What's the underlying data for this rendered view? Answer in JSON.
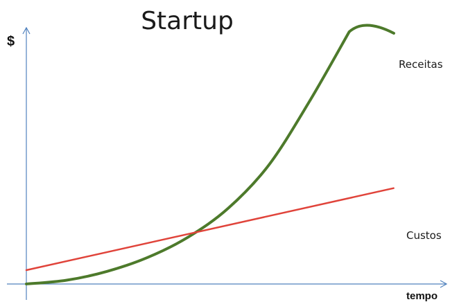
{
  "chart_data": {
    "type": "line",
    "title": "Startup",
    "xlabel": "tempo",
    "ylabel": "$",
    "xlim": [
      0,
      10
    ],
    "ylim": [
      0,
      10
    ],
    "grid": false,
    "x_ticks": false,
    "y_ticks": false,
    "series": [
      {
        "name": "Receitas",
        "color": "#4d7a2b",
        "x": [
          0,
          1,
          2,
          3,
          4,
          5,
          6,
          7,
          8,
          9.1
        ],
        "y": [
          0,
          0.15,
          0.5,
          1.05,
          1.85,
          3.0,
          4.7,
          7.2,
          10.0,
          10.0
        ],
        "shape": "exponential"
      },
      {
        "name": "Custos",
        "color": "#e0433a",
        "x": [
          0,
          9.1
        ],
        "y": [
          0.55,
          3.8
        ],
        "shape": "linear"
      }
    ]
  }
}
